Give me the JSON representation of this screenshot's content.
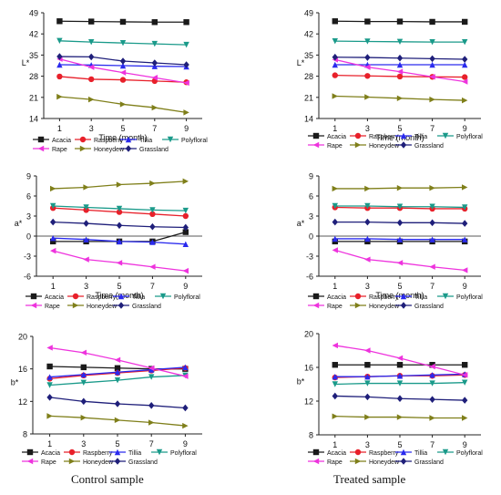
{
  "captions": [
    "Control sample",
    "Treated sample"
  ],
  "series_colors": {
    "Acacia": "#1a1a1a",
    "Raspberry": "#e8202a",
    "Tillia": "#2a2aee",
    "Polyfloral": "#1a9a8a",
    "Rape": "#ee33dd",
    "Honeydew": "#7f7f1a",
    "Grassland": "#1f1f7a"
  },
  "series_markers": {
    "Acacia": "square",
    "Raspberry": "circle",
    "Tillia": "triangle-up",
    "Polyfloral": "triangle-down",
    "Rape": "triangle-left",
    "Honeydew": "triangle-right",
    "Grassland": "diamond"
  },
  "chart_data": [
    {
      "id": "control-L",
      "type": "line",
      "sample": "Control sample",
      "xlabel": "Time (month)",
      "ylabel": "L*",
      "x": [
        1,
        3,
        5,
        7,
        9
      ],
      "xticks": [
        "1",
        "3",
        "5",
        "7",
        "9"
      ],
      "ylim": [
        14,
        49
      ],
      "yticks": [
        "14",
        "21",
        "28",
        "35",
        "42",
        "49"
      ],
      "series": [
        {
          "name": "Acacia",
          "values": [
            46.2,
            46.1,
            46.0,
            45.9,
            45.9
          ]
        },
        {
          "name": "Raspberry",
          "values": [
            27.9,
            27.0,
            26.8,
            26.4,
            26.0
          ]
        },
        {
          "name": "Tillia",
          "values": [
            31.8,
            31.7,
            31.5,
            31.3,
            31.2
          ]
        },
        {
          "name": "Polyfloral",
          "values": [
            39.7,
            39.3,
            39.0,
            38.7,
            38.4
          ]
        },
        {
          "name": "Rape",
          "values": [
            33.7,
            31.0,
            29.2,
            27.5,
            25.8
          ]
        },
        {
          "name": "Honeydew",
          "values": [
            21.2,
            20.3,
            18.7,
            17.6,
            16.0
          ]
        },
        {
          "name": "Grassland",
          "values": [
            34.5,
            34.4,
            33.0,
            32.4,
            31.8
          ]
        }
      ]
    },
    {
      "id": "treated-L",
      "type": "line",
      "sample": "Treated sample",
      "xlabel": "Time (month)",
      "ylabel": "L*",
      "x": [
        1,
        3,
        5,
        7,
        9
      ],
      "xticks": [
        "1",
        "3",
        "5",
        "7",
        "9"
      ],
      "ylim": [
        14,
        49
      ],
      "yticks": [
        "14",
        "21",
        "28",
        "35",
        "42",
        "49"
      ],
      "series": [
        {
          "name": "Acacia",
          "values": [
            46.2,
            46.1,
            46.1,
            46.0,
            46.0
          ]
        },
        {
          "name": "Raspberry",
          "values": [
            28.3,
            28.1,
            27.9,
            27.8,
            27.7
          ]
        },
        {
          "name": "Tillia",
          "values": [
            31.8,
            31.8,
            31.8,
            31.8,
            31.8
          ]
        },
        {
          "name": "Polyfloral",
          "values": [
            39.6,
            39.5,
            39.4,
            39.3,
            39.3
          ]
        },
        {
          "name": "Rape",
          "values": [
            33.5,
            31.0,
            29.5,
            27.8,
            26.2
          ]
        },
        {
          "name": "Honeydew",
          "values": [
            21.4,
            21.1,
            20.7,
            20.3,
            20.0
          ]
        },
        {
          "name": "Grassland",
          "values": [
            34.3,
            34.2,
            34.0,
            33.8,
            33.6
          ]
        }
      ]
    },
    {
      "id": "control-a",
      "type": "line",
      "sample": "Control sample",
      "xlabel": "Time (month)",
      "ylabel": "a*",
      "x": [
        1,
        3,
        5,
        7,
        9
      ],
      "xticks": [
        "1",
        "3",
        "5",
        "7",
        "9"
      ],
      "ylim": [
        -6,
        9
      ],
      "yticks": [
        "-6",
        "-3",
        "0",
        "3",
        "6",
        "9"
      ],
      "series": [
        {
          "name": "Acacia",
          "values": [
            -0.8,
            -0.8,
            -0.8,
            -0.8,
            0.6
          ]
        },
        {
          "name": "Raspberry",
          "values": [
            4.2,
            3.9,
            3.6,
            3.3,
            3.0
          ]
        },
        {
          "name": "Tillia",
          "values": [
            -0.3,
            -0.5,
            -0.8,
            -0.9,
            -1.2
          ]
        },
        {
          "name": "Polyfloral",
          "values": [
            4.5,
            4.3,
            4.1,
            3.9,
            3.8
          ]
        },
        {
          "name": "Rape",
          "values": [
            -2.2,
            -3.5,
            -4.0,
            -4.6,
            -5.2
          ]
        },
        {
          "name": "Honeydew",
          "values": [
            7.1,
            7.3,
            7.7,
            7.9,
            8.2
          ]
        },
        {
          "name": "Grassland",
          "values": [
            2.1,
            1.9,
            1.6,
            1.4,
            1.3
          ]
        }
      ]
    },
    {
      "id": "treated-a",
      "type": "line",
      "sample": "Treated sample",
      "xlabel": "Time (month)",
      "ylabel": "a*",
      "x": [
        1,
        3,
        5,
        7,
        9
      ],
      "xticks": [
        "1",
        "3",
        "5",
        "7",
        "9"
      ],
      "ylim": [
        -6,
        9
      ],
      "yticks": [
        "-6",
        "-3",
        "0",
        "3",
        "6",
        "9"
      ],
      "series": [
        {
          "name": "Acacia",
          "values": [
            -0.8,
            -0.8,
            -0.8,
            -0.8,
            -0.8
          ]
        },
        {
          "name": "Raspberry",
          "values": [
            4.3,
            4.2,
            4.2,
            4.1,
            4.1
          ]
        },
        {
          "name": "Tillia",
          "values": [
            -0.4,
            -0.4,
            -0.5,
            -0.5,
            -0.5
          ]
        },
        {
          "name": "Polyfloral",
          "values": [
            4.5,
            4.5,
            4.4,
            4.4,
            4.3
          ]
        },
        {
          "name": "Rape",
          "values": [
            -2.1,
            -3.5,
            -4.0,
            -4.6,
            -5.1
          ]
        },
        {
          "name": "Honeydew",
          "values": [
            7.1,
            7.1,
            7.2,
            7.2,
            7.3
          ]
        },
        {
          "name": "Grassland",
          "values": [
            2.1,
            2.1,
            2.0,
            2.0,
            1.9
          ]
        }
      ]
    },
    {
      "id": "control-b",
      "type": "line",
      "sample": "Control sample",
      "xlabel": "",
      "ylabel": "b*",
      "x": [
        1,
        3,
        5,
        7,
        9
      ],
      "xticks": [
        "1",
        "3",
        "5",
        "7",
        "9"
      ],
      "ylim": [
        8,
        20
      ],
      "yticks": [
        "8",
        "12",
        "16",
        "20"
      ],
      "series": [
        {
          "name": "Acacia",
          "values": [
            16.3,
            16.2,
            16.1,
            16.0,
            16.0
          ]
        },
        {
          "name": "Raspberry",
          "values": [
            14.8,
            15.2,
            15.5,
            15.8,
            16.1
          ]
        },
        {
          "name": "Tillia",
          "values": [
            15.0,
            15.3,
            15.6,
            15.9,
            16.2
          ]
        },
        {
          "name": "Polyfloral",
          "values": [
            14.0,
            14.3,
            14.6,
            15.0,
            15.2
          ]
        },
        {
          "name": "Rape",
          "values": [
            18.6,
            18.0,
            17.1,
            16.1,
            15.1
          ]
        },
        {
          "name": "Honeydew",
          "values": [
            10.2,
            10.0,
            9.7,
            9.4,
            9.0
          ]
        },
        {
          "name": "Grassland",
          "values": [
            12.5,
            12.0,
            11.7,
            11.5,
            11.2
          ]
        }
      ]
    },
    {
      "id": "treated-b",
      "type": "line",
      "sample": "Treated sample",
      "xlabel": "",
      "ylabel": "b*",
      "x": [
        1,
        3,
        5,
        7,
        9
      ],
      "xticks": [
        "1",
        "3",
        "5",
        "7",
        "9"
      ],
      "ylim": [
        8,
        20
      ],
      "yticks": [
        "8",
        "12",
        "16",
        "20"
      ],
      "series": [
        {
          "name": "Acacia",
          "values": [
            16.3,
            16.3,
            16.3,
            16.3,
            16.3
          ]
        },
        {
          "name": "Raspberry",
          "values": [
            14.8,
            14.9,
            15.0,
            15.0,
            15.1
          ]
        },
        {
          "name": "Tillia",
          "values": [
            14.9,
            14.9,
            15.0,
            15.1,
            15.2
          ]
        },
        {
          "name": "Polyfloral",
          "values": [
            14.0,
            14.1,
            14.1,
            14.1,
            14.2
          ]
        },
        {
          "name": "Rape",
          "values": [
            18.6,
            18.0,
            17.1,
            16.1,
            15.1
          ]
        },
        {
          "name": "Honeydew",
          "values": [
            10.2,
            10.1,
            10.1,
            10.0,
            10.0
          ]
        },
        {
          "name": "Grassland",
          "values": [
            12.6,
            12.5,
            12.3,
            12.2,
            12.1
          ]
        }
      ]
    }
  ]
}
